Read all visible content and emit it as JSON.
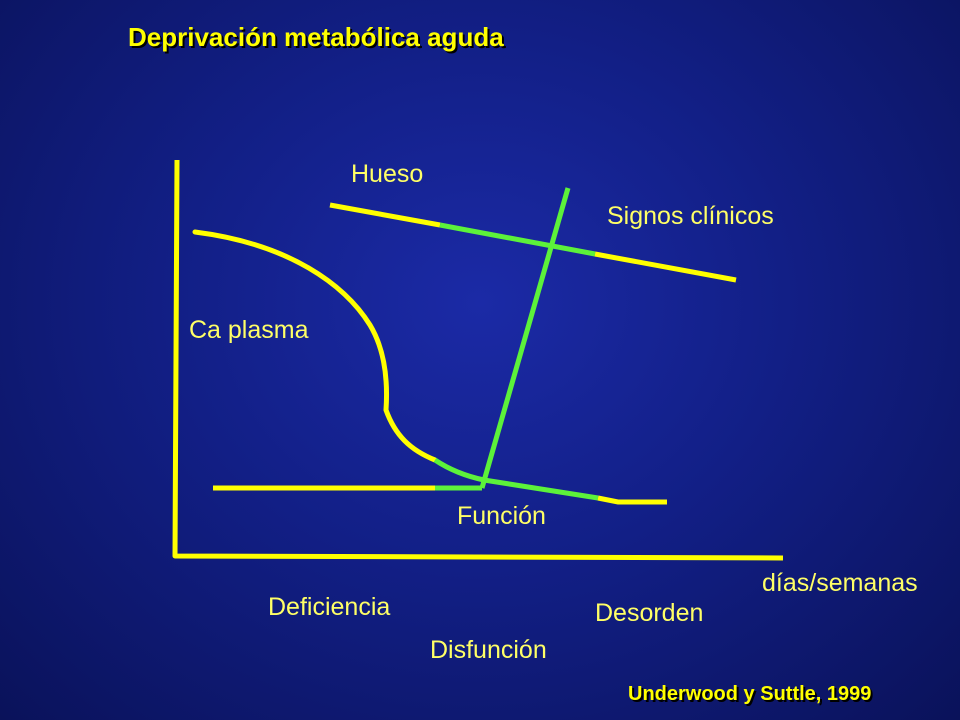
{
  "title": "Deprivación metabólica aguda",
  "credit": "Underwood y Suttle, 1999",
  "labels": {
    "hueso": "Hueso",
    "signos": "Signos clínicos",
    "ca_plasma": "Ca plasma",
    "funcion": "Función",
    "eje_x": "días/semanas",
    "deficiencia": "Deficiencia",
    "disfuncion": "Disfunción",
    "desorden": "Desorden"
  },
  "colors": {
    "yellow": "#ffff00",
    "green": "#5cf23a",
    "label_text": "#ffff66"
  }
}
